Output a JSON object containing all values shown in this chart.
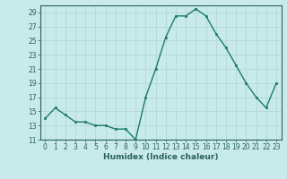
{
  "x": [
    0,
    1,
    2,
    3,
    4,
    5,
    6,
    7,
    8,
    9,
    10,
    11,
    12,
    13,
    14,
    15,
    16,
    17,
    18,
    19,
    20,
    21,
    22,
    23
  ],
  "y": [
    14,
    15.5,
    14.5,
    13.5,
    13.5,
    13,
    13,
    12.5,
    12.5,
    11,
    17,
    21,
    25.5,
    28.5,
    28.5,
    29.5,
    28.5,
    26,
    24,
    21.5,
    19,
    17,
    15.5,
    19
  ],
  "xlabel": "Humidex (Indice chaleur)",
  "ylim": [
    11,
    30
  ],
  "xlim": [
    -0.5,
    23.5
  ],
  "yticks": [
    11,
    13,
    15,
    17,
    19,
    21,
    23,
    25,
    27,
    29
  ],
  "xticks": [
    0,
    1,
    2,
    3,
    4,
    5,
    6,
    7,
    8,
    9,
    10,
    11,
    12,
    13,
    14,
    15,
    16,
    17,
    18,
    19,
    20,
    21,
    22,
    23
  ],
  "line_color": "#1a7a6e",
  "marker_color": "#1a7a6e",
  "bg_color": "#c8eaea",
  "grid_color": "#b0d4d4"
}
